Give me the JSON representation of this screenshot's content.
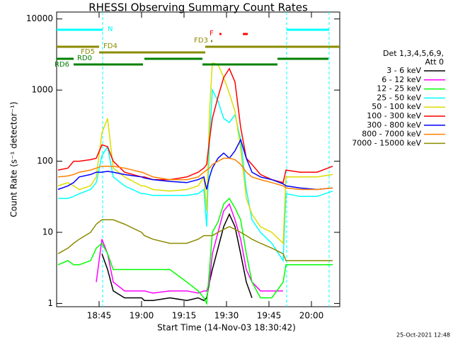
{
  "chart_data": {
    "type": "line",
    "title": "RHESSI Observing Summary Count Rates",
    "x_label": "Start Time (14-Nov-03 18:30:42)",
    "y_label": "Count Rate (s⁻¹ detector⁻¹)",
    "legend_title": [
      "Det 1,3,4,5,6,9,",
      "Att 0"
    ],
    "footer": "25-Oct-2021 12:48",
    "log_y": true,
    "xlim": [
      1110,
      1210
    ],
    "xticks": [
      {
        "value": 1125,
        "label": "18:45"
      },
      {
        "value": 1140,
        "label": "19:00"
      },
      {
        "value": 1155,
        "label": "19:15"
      },
      {
        "value": 1170,
        "label": "19:30"
      },
      {
        "value": 1185,
        "label": "19:45"
      },
      {
        "value": 1200,
        "label": "20:00"
      }
    ],
    "ylim": [
      0.9,
      12500
    ],
    "yticks": [
      1,
      10,
      100,
      1000,
      10000
    ],
    "x": [
      1110.5,
      1114,
      1116,
      1118,
      1122,
      1124,
      1126,
      1128,
      1130,
      1134,
      1140,
      1141,
      1144,
      1150,
      1156,
      1160,
      1162,
      1163,
      1164,
      1165,
      1167,
      1169,
      1171,
      1173,
      1175,
      1177,
      1179,
      1182,
      1186,
      1190,
      1191,
      1196,
      1202,
      1207.5
    ],
    "series": [
      {
        "name": "3 - 6 keV",
        "color": "#000000",
        "values": [
          null,
          null,
          null,
          null,
          null,
          null,
          5,
          3,
          1.5,
          1.2,
          1.2,
          1.1,
          1.1,
          1.2,
          1.1,
          1.2,
          1.1,
          1.2,
          2,
          3,
          6,
          12,
          18,
          12,
          5,
          2,
          1.2,
          null,
          null,
          null,
          null,
          null,
          null,
          null
        ]
      },
      {
        "name": "6 - 12 keV",
        "color": "#ff00ff",
        "values": [
          null,
          null,
          null,
          null,
          null,
          2,
          8,
          5,
          2,
          1.5,
          1.5,
          1.5,
          1.4,
          1.5,
          1.5,
          1.4,
          1.5,
          1.5,
          2,
          5,
          10,
          20,
          25,
          15,
          8,
          3,
          2,
          1.5,
          1.5,
          1.5,
          null,
          null,
          null,
          null
        ]
      },
      {
        "name": "12 - 25 keV",
        "color": "#00ff00",
        "values": [
          3.5,
          4,
          3.5,
          3.5,
          4,
          6,
          7,
          5,
          3,
          3,
          3,
          3,
          3,
          3,
          2,
          1.5,
          1.2,
          1,
          3,
          10,
          14,
          25,
          30,
          22,
          15,
          5,
          2,
          1.2,
          1.2,
          2,
          3.5,
          3.5,
          3.5,
          3.5
        ]
      },
      {
        "name": "25 - 50 keV",
        "color": "#00ffff",
        "values": [
          30,
          30,
          32,
          35,
          40,
          50,
          120,
          160,
          60,
          45,
          35,
          35,
          33,
          33,
          33,
          35,
          40,
          12,
          200,
          1000,
          700,
          400,
          350,
          450,
          200,
          40,
          15,
          10,
          7,
          4,
          35,
          32,
          32,
          38
        ]
      },
      {
        "name": "50 - 100 keV",
        "color": "#dddd00",
        "values": [
          45,
          50,
          45,
          40,
          45,
          60,
          250,
          400,
          80,
          60,
          45,
          45,
          40,
          38,
          40,
          45,
          60,
          20,
          500,
          2400,
          2300,
          1500,
          900,
          500,
          150,
          30,
          18,
          12,
          10,
          7,
          60,
          60,
          60,
          65
        ]
      },
      {
        "name": "100 - 300 keV",
        "color": "#ff0000",
        "values": [
          75,
          80,
          100,
          100,
          105,
          110,
          170,
          160,
          100,
          70,
          60,
          60,
          55,
          55,
          60,
          70,
          80,
          90,
          200,
          400,
          800,
          1500,
          2000,
          1300,
          300,
          110,
          90,
          65,
          55,
          50,
          75,
          70,
          70,
          85
        ]
      },
      {
        "name": "300 - 800 keV",
        "color": "#0000ff",
        "values": [
          40,
          45,
          50,
          60,
          65,
          70,
          70,
          72,
          70,
          65,
          60,
          58,
          55,
          52,
          50,
          55,
          60,
          40,
          60,
          80,
          110,
          130,
          110,
          140,
          200,
          110,
          70,
          60,
          55,
          48,
          45,
          42,
          40,
          42
        ]
      },
      {
        "name": "800 - 7000 keV",
        "color": "#ff8000",
        "values": [
          60,
          62,
          65,
          70,
          75,
          80,
          85,
          85,
          85,
          80,
          70,
          68,
          60,
          55,
          55,
          60,
          70,
          75,
          80,
          90,
          100,
          110,
          110,
          105,
          90,
          70,
          60,
          55,
          50,
          45,
          42,
          40,
          40,
          42
        ]
      },
      {
        "name": "7000 - 15000 keV",
        "color": "#8b8b00",
        "values": [
          5,
          6,
          7,
          8,
          10,
          13,
          15,
          15,
          15,
          13,
          10,
          9,
          8,
          7,
          7,
          8,
          9,
          9,
          9,
          9,
          10,
          11,
          12,
          11,
          10,
          9,
          8,
          7,
          6,
          5,
          4,
          4,
          4,
          4
        ]
      }
    ],
    "annotations": [
      {
        "label": "N",
        "color": "#00ffff",
        "spans": [
          [
            1110,
            1126.25
          ],
          [
            1191.25,
            1206.25
          ]
        ]
      },
      {
        "label": "F",
        "color": "#ff0000",
        "spans": [
          [
            1167.5,
            1168.2
          ],
          [
            1175.8,
            1177.5
          ]
        ]
      },
      {
        "label": "FD3",
        "color": "#8b8b00",
        "spans": [
          [
            1164.5,
            1165
          ]
        ]
      },
      {
        "label": "FD4",
        "color": "#8b8b00",
        "spans": [
          [
            1110,
            1125
          ],
          [
            1162.5,
            1210
          ]
        ]
      },
      {
        "label": "FD5",
        "color": "#8b8b00",
        "spans": [
          [
            1125,
            1162.5
          ]
        ]
      },
      {
        "label": "RD0",
        "color": "#008000",
        "spans": [
          [
            1110,
            1116
          ],
          [
            1141,
            1161.5
          ],
          [
            1188,
            1206
          ]
        ]
      },
      {
        "label": "RD6",
        "color": "#008000",
        "spans": [
          [
            1116,
            1140.5
          ],
          [
            1161.5,
            1188
          ]
        ]
      }
    ]
  }
}
